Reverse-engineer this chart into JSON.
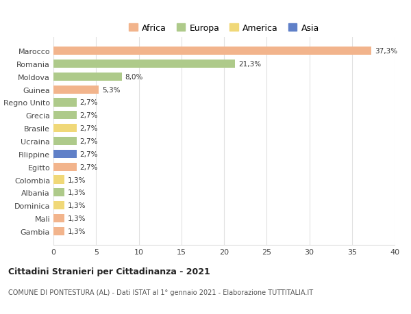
{
  "categories": [
    "Marocco",
    "Romania",
    "Moldova",
    "Guinea",
    "Regno Unito",
    "Grecia",
    "Brasile",
    "Ucraina",
    "Filippine",
    "Egitto",
    "Colombia",
    "Albania",
    "Dominica",
    "Mali",
    "Gambia"
  ],
  "values": [
    37.3,
    21.3,
    8.0,
    5.3,
    2.7,
    2.7,
    2.7,
    2.7,
    2.7,
    2.7,
    1.3,
    1.3,
    1.3,
    1.3,
    1.3
  ],
  "labels": [
    "37,3%",
    "21,3%",
    "8,0%",
    "5,3%",
    "2,7%",
    "2,7%",
    "2,7%",
    "2,7%",
    "2,7%",
    "2,7%",
    "1,3%",
    "1,3%",
    "1,3%",
    "1,3%",
    "1,3%"
  ],
  "continents": [
    "Africa",
    "Europa",
    "Europa",
    "Africa",
    "Europa",
    "Europa",
    "America",
    "Europa",
    "Asia",
    "Africa",
    "America",
    "Europa",
    "America",
    "Africa",
    "Africa"
  ],
  "colors": {
    "Africa": "#F2B48C",
    "Europa": "#AECA8A",
    "America": "#F0D878",
    "Asia": "#6080C8"
  },
  "xlim": [
    0,
    40
  ],
  "xticks": [
    0,
    5,
    10,
    15,
    20,
    25,
    30,
    35,
    40
  ],
  "title": "Cittadini Stranieri per Cittadinanza - 2021",
  "subtitle": "COMUNE DI PONTESTURA (AL) - Dati ISTAT al 1° gennaio 2021 - Elaborazione TUTTITALIA.IT",
  "background_color": "#ffffff",
  "grid_color": "#e0e0e0",
  "legend_order": [
    "Africa",
    "Europa",
    "America",
    "Asia"
  ]
}
